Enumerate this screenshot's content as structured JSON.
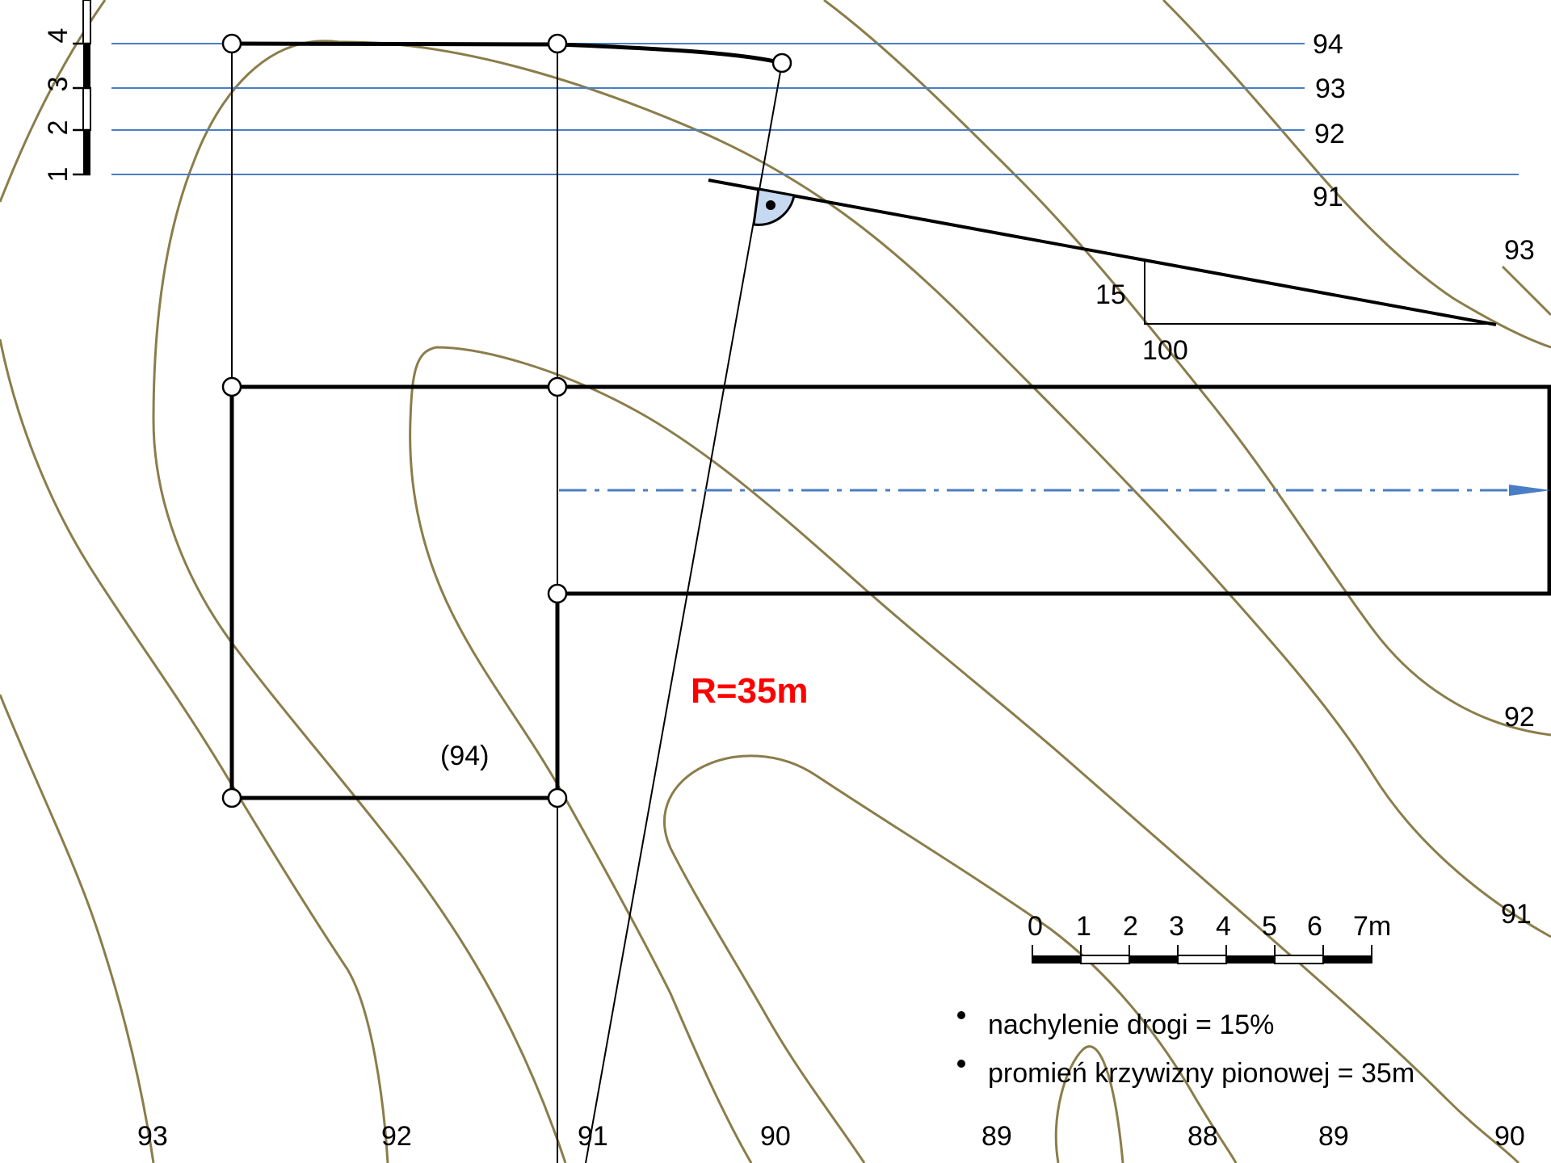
{
  "vertical_scale": {
    "labels": [
      "1",
      "2",
      "3",
      "4"
    ]
  },
  "level_lines": {
    "labels": [
      "94",
      "93",
      "92",
      "91"
    ]
  },
  "contour_labels": {
    "c93_right": "93",
    "c92_right": "92",
    "c91_right": "91",
    "top": "(94)",
    "bottom": [
      "93",
      "92",
      "91",
      "90",
      "89",
      "88",
      "89",
      "90"
    ]
  },
  "slope": {
    "rise": "15",
    "run": "100"
  },
  "radius_label": "R=35m",
  "horizontal_scale": {
    "labels": [
      "0",
      "1",
      "2",
      "3",
      "4",
      "5",
      "6",
      "7m"
    ]
  },
  "notes": [
    "nachylenie drogi = 15%",
    "promień krzywizny pionowej = 35m"
  ],
  "colors": {
    "contour": "#8b7d4a",
    "level": "#4a7ec4",
    "radius": "#ff0000",
    "angle_fill": "#c6d9f1"
  }
}
